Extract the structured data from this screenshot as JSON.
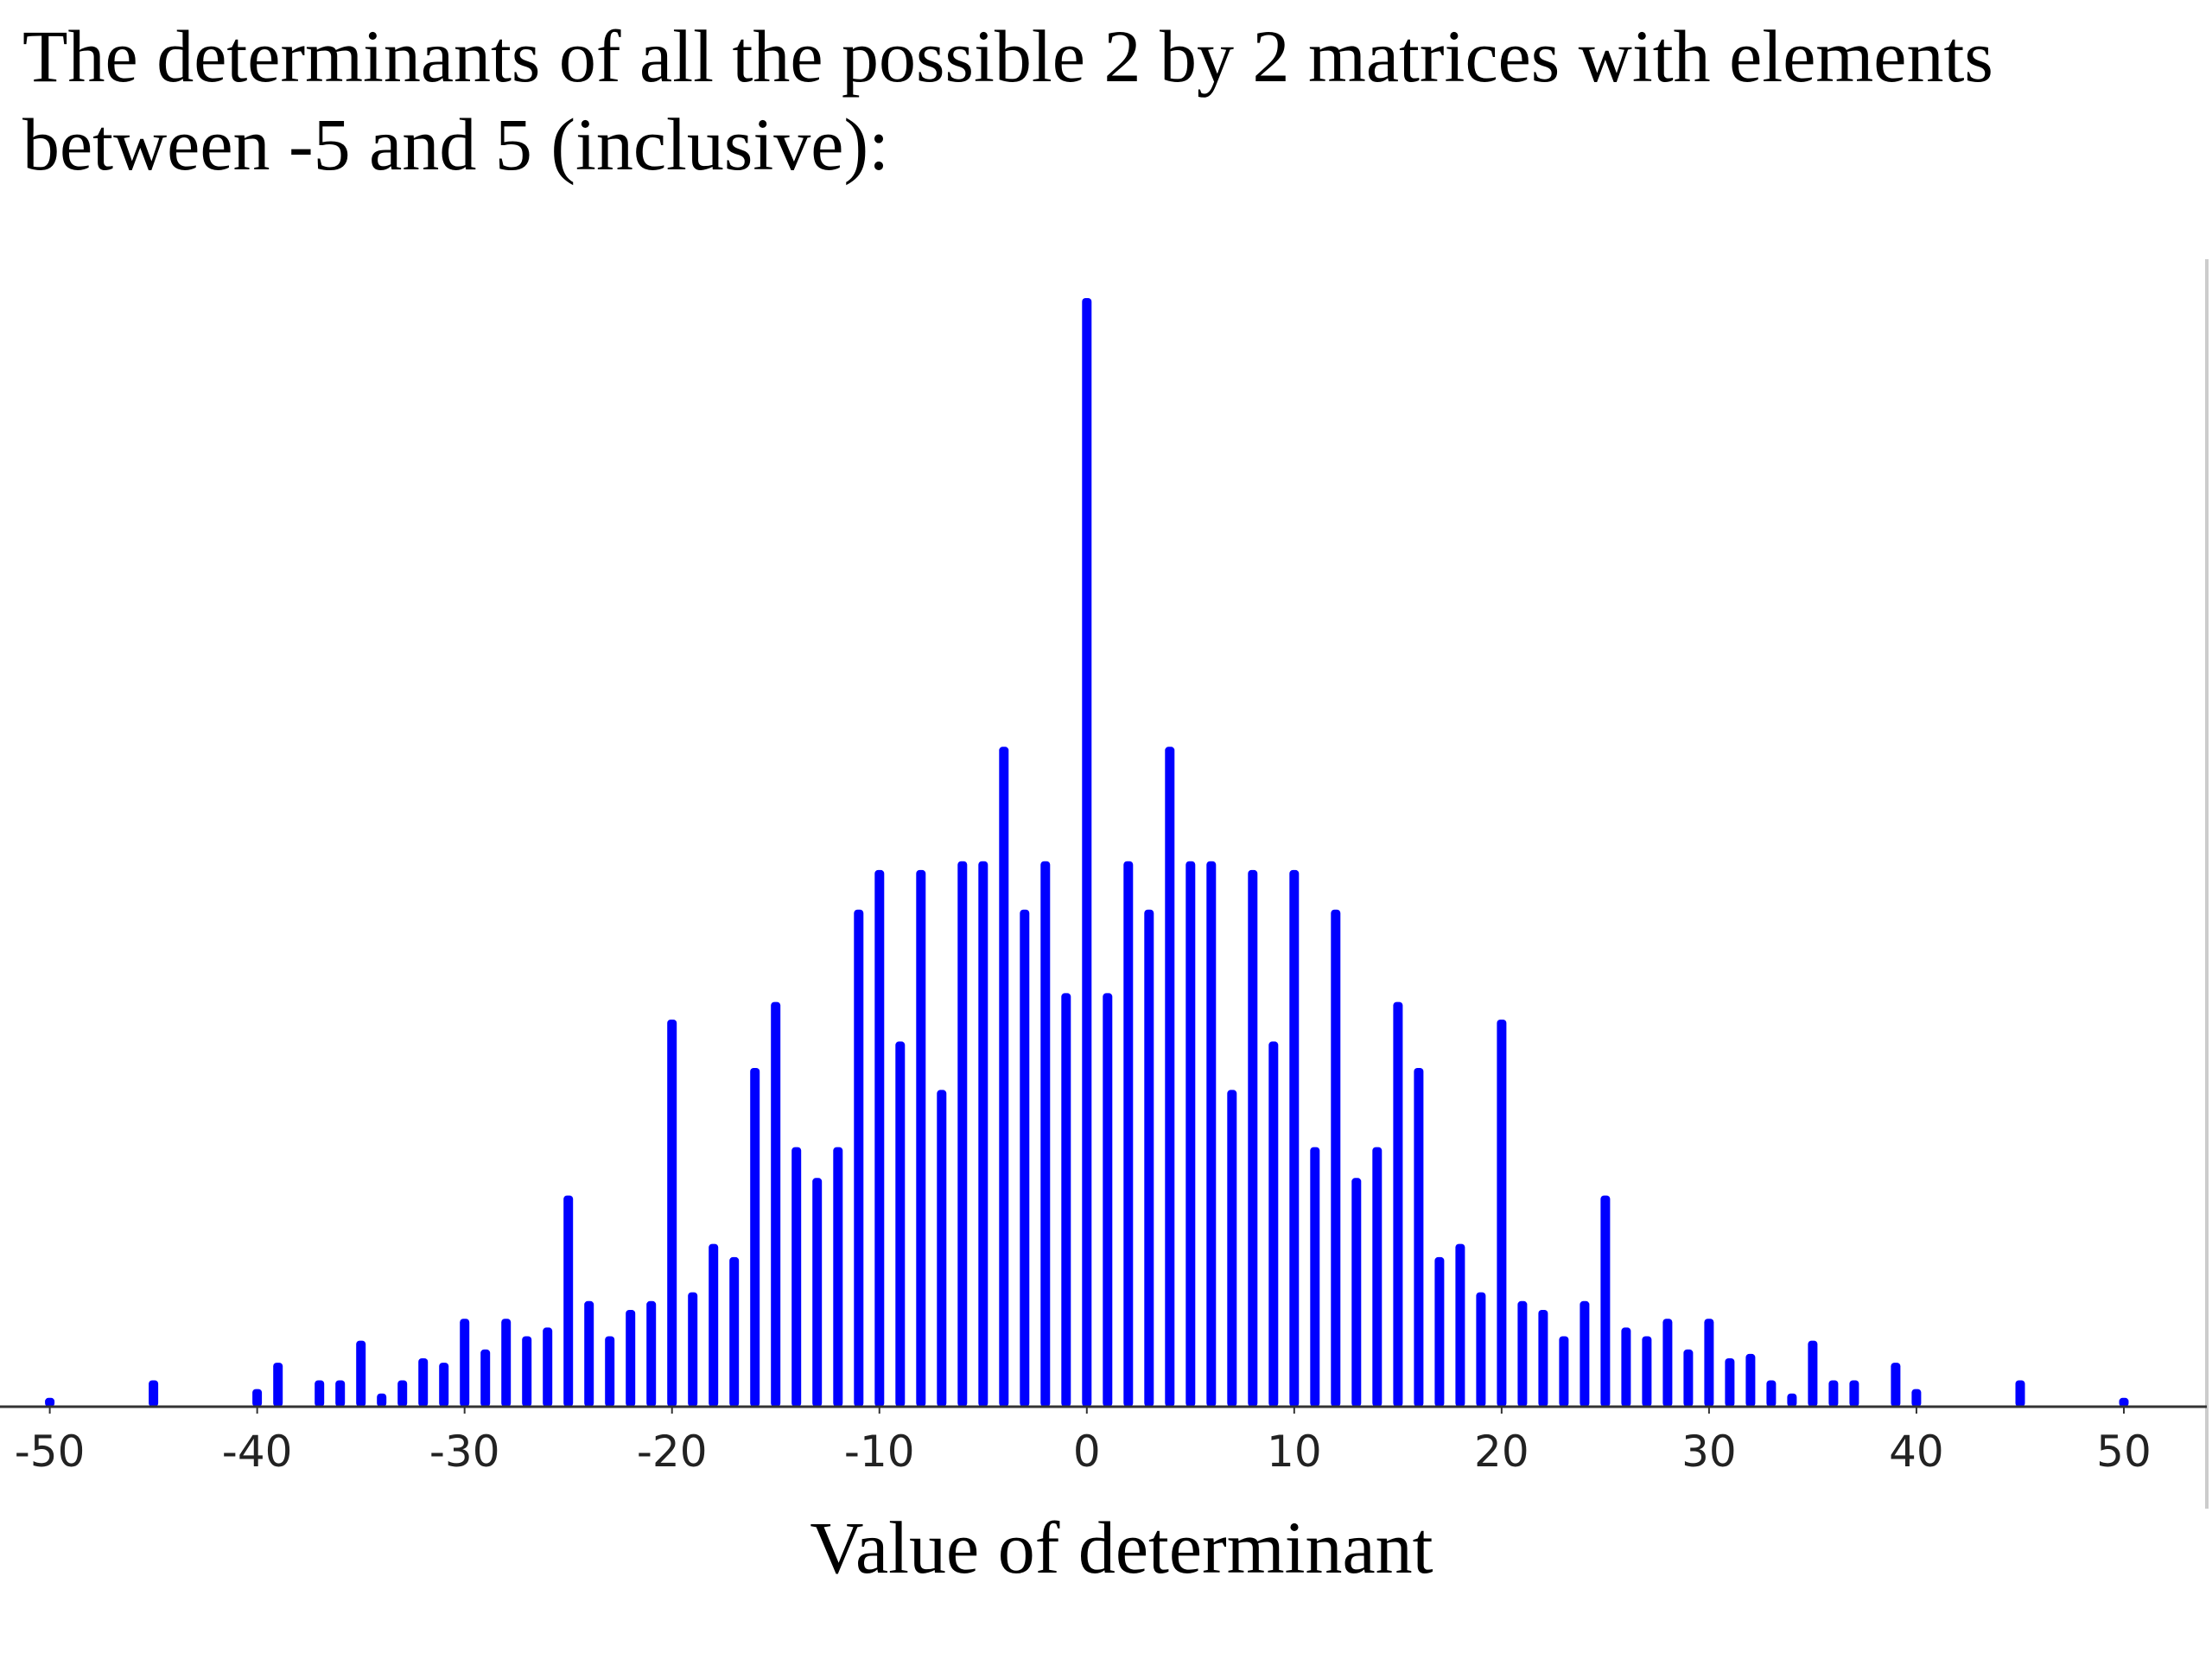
{
  "page": {
    "title": "The determinants of all the possible 2 by 2 matrices with elements between -5 and 5 (inclusive):"
  },
  "chart_data": {
    "type": "bar",
    "title": "",
    "xlabel": "Value of determinant",
    "ylabel": "",
    "xlim": [
      -52.4,
      54
    ],
    "ylim": [
      0,
      252
    ],
    "grid": false,
    "legend": "none",
    "bar_color": "#0000ff",
    "axis_color": "#333333",
    "x_ticks": [
      -50,
      -40,
      -30,
      -20,
      -10,
      0,
      10,
      20,
      30,
      40,
      50
    ],
    "x_tick_labels": [
      "-50",
      "-40",
      "-30",
      "-20",
      "-10",
      "0",
      "10",
      "20",
      "30",
      "40",
      "50"
    ],
    "series": [
      {
        "x": [
          -50,
          -45,
          -40,
          -39,
          -37,
          -36,
          -35,
          -34,
          -33,
          -32,
          -31,
          -30,
          -29,
          -28,
          -27,
          -26,
          -25,
          -24,
          -23,
          -22,
          -21,
          -20,
          -19,
          -18,
          -17,
          -16,
          -15,
          -14,
          -13,
          -12,
          -11,
          -10,
          -9,
          -8,
          -7,
          -6,
          -5,
          -4,
          -3,
          -2,
          -1,
          0,
          1,
          2,
          3,
          4,
          5,
          6,
          7,
          8,
          9,
          10,
          11,
          12,
          13,
          14,
          15,
          16,
          17,
          18,
          19,
          20,
          21,
          22,
          23,
          24,
          25,
          26,
          27,
          28,
          29,
          30,
          31,
          32,
          33,
          34,
          35,
          36,
          37,
          39,
          40,
          45,
          50
        ],
        "values": [
          2,
          6,
          4,
          10,
          6,
          6,
          15,
          3,
          6,
          11,
          10,
          20,
          13,
          20,
          16,
          18,
          48,
          24,
          16,
          22,
          24,
          88,
          26,
          37,
          34,
          77,
          92,
          59,
          52,
          59,
          113,
          122,
          83,
          122,
          72,
          124,
          124,
          150,
          113,
          124,
          94,
          252,
          94,
          124,
          113,
          150,
          124,
          124,
          72,
          122,
          83,
          122,
          59,
          113,
          52,
          59,
          92,
          77,
          34,
          37,
          26,
          88,
          24,
          22,
          16,
          24,
          48,
          18,
          16,
          20,
          13,
          20,
          11,
          12,
          6,
          3,
          15,
          6,
          6,
          10,
          4,
          6,
          2
        ]
      }
    ]
  }
}
